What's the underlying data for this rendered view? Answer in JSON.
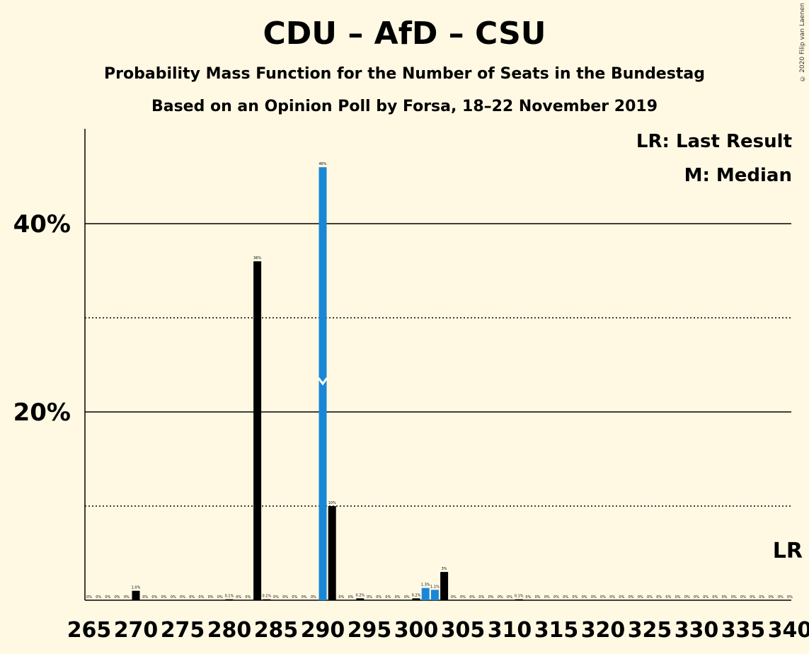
{
  "title": "CDU – AfD – CSU",
  "subtitle1": "Probability Mass Function for the Number of Seats in the Bundestag",
  "subtitle2": "Based on an Opinion Poll by Forsa, 18–22 November 2019",
  "copyright": "© 2020 Filip van Laenen",
  "legend": {
    "last_result": "LR: Last Result",
    "median": "M: Median"
  },
  "colors": {
    "background": "#fff9e3",
    "bar": "#000000",
    "median_bar": "#1a87d6"
  },
  "chart_data": {
    "type": "bar",
    "x_min": 265,
    "x_max": 340,
    "ylim": [
      0,
      50
    ],
    "y_ticks_major": [
      {
        "value": 20,
        "label": "20%"
      },
      {
        "value": 40,
        "label": "40%"
      }
    ],
    "y_ticks_minor": [
      10,
      30
    ],
    "x_ticks": [
      265,
      270,
      275,
      280,
      285,
      290,
      295,
      300,
      305,
      310,
      315,
      320,
      325,
      330,
      335,
      340
    ],
    "median": 290,
    "median_marker": "M",
    "last_result": 340,
    "last_result_marker": "LR",
    "blue_seats": [
      290,
      301,
      302
    ],
    "values": {
      "265": [
        0,
        "0%"
      ],
      "266": [
        0,
        "0%"
      ],
      "267": [
        0,
        "0%"
      ],
      "268": [
        0,
        "0%"
      ],
      "269": [
        0,
        "0%"
      ],
      "270": [
        1.0,
        "1.0%"
      ],
      "271": [
        0,
        "0%"
      ],
      "272": [
        0,
        "0%"
      ],
      "273": [
        0,
        "0%"
      ],
      "274": [
        0,
        "0%"
      ],
      "275": [
        0,
        "0%"
      ],
      "276": [
        0,
        "0%"
      ],
      "277": [
        0,
        "0%"
      ],
      "278": [
        0,
        "0%"
      ],
      "279": [
        0,
        "0%"
      ],
      "280": [
        0.1,
        "0.1%"
      ],
      "281": [
        0,
        "0%"
      ],
      "282": [
        0,
        "0%"
      ],
      "283": [
        36,
        "36%"
      ],
      "284": [
        0.1,
        "0.1%"
      ],
      "285": [
        0,
        "0%"
      ],
      "286": [
        0,
        "0%"
      ],
      "287": [
        0,
        "0%"
      ],
      "288": [
        0,
        "0%"
      ],
      "289": [
        0,
        "0%"
      ],
      "290": [
        46,
        "46%"
      ],
      "291": [
        10,
        "10%"
      ],
      "292": [
        0,
        "0%"
      ],
      "293": [
        0,
        "0%"
      ],
      "294": [
        0.2,
        "0.2%"
      ],
      "295": [
        0,
        "0%"
      ],
      "296": [
        0,
        "0%"
      ],
      "297": [
        0,
        "0%"
      ],
      "298": [
        0,
        "0%"
      ],
      "299": [
        0,
        "0%"
      ],
      "300": [
        0.2,
        "0.2%"
      ],
      "301": [
        1.3,
        "1.3%"
      ],
      "302": [
        1.1,
        "1.1%"
      ],
      "303": [
        3,
        "3%"
      ],
      "304": [
        0,
        "0%"
      ],
      "305": [
        0,
        "0%"
      ],
      "306": [
        0,
        "0%"
      ],
      "307": [
        0,
        "0%"
      ],
      "308": [
        0,
        "0%"
      ],
      "309": [
        0,
        "0%"
      ],
      "310": [
        0,
        "0%"
      ],
      "311": [
        0.1,
        "0.1%"
      ],
      "312": [
        0,
        "0%"
      ],
      "313": [
        0,
        "0%"
      ],
      "314": [
        0,
        "0%"
      ],
      "315": [
        0,
        "0%"
      ],
      "316": [
        0,
        "0%"
      ],
      "317": [
        0,
        "0%"
      ],
      "318": [
        0,
        "0%"
      ],
      "319": [
        0,
        "0%"
      ],
      "320": [
        0,
        "0%"
      ],
      "321": [
        0,
        "0%"
      ],
      "322": [
        0,
        "0%"
      ],
      "323": [
        0,
        "0%"
      ],
      "324": [
        0,
        "0%"
      ],
      "325": [
        0,
        "0%"
      ],
      "326": [
        0,
        "0%"
      ],
      "327": [
        0,
        "0%"
      ],
      "328": [
        0,
        "0%"
      ],
      "329": [
        0,
        "0%"
      ],
      "330": [
        0,
        "0%"
      ],
      "331": [
        0,
        "0%"
      ],
      "332": [
        0,
        "0%"
      ],
      "333": [
        0,
        "0%"
      ],
      "334": [
        0,
        "0%"
      ],
      "335": [
        0,
        "0%"
      ],
      "336": [
        0,
        "0%"
      ],
      "337": [
        0,
        "0%"
      ],
      "338": [
        0,
        "0%"
      ],
      "339": [
        0,
        "0%"
      ],
      "340": [
        0,
        "0%"
      ]
    }
  }
}
